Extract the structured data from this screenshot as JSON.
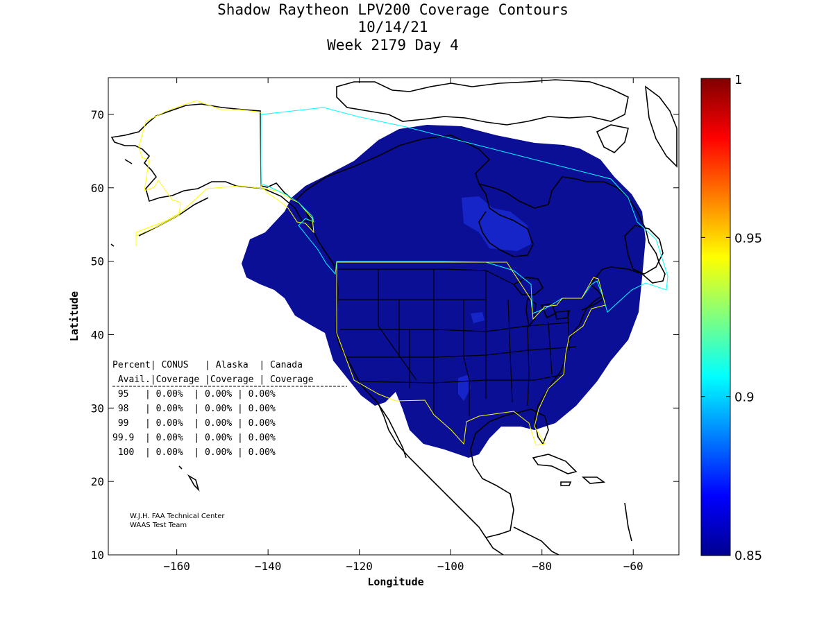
{
  "title": {
    "line1": "Shadow Raytheon LPV200 Coverage Contours",
    "line2": "10/14/21",
    "line3": "Week 2179 Day 4"
  },
  "axes": {
    "xlabel": "Longitude",
    "ylabel": "Latitude",
    "xlim": [
      -175,
      -50
    ],
    "ylim": [
      10,
      75
    ],
    "xticks": [
      -160,
      -140,
      -120,
      -100,
      -80,
      -60
    ],
    "yticks": [
      10,
      20,
      30,
      40,
      50,
      60,
      70
    ]
  },
  "colorbar": {
    "range": [
      0.85,
      1
    ],
    "ticks": [
      "0.85",
      "0.9",
      "0.95",
      "1"
    ],
    "colormap": "jet",
    "fill_color": "#0a0f96"
  },
  "table": {
    "header1": "Percent| CONUS   | Alaska  | Canada",
    "header2": " Avail.|Coverage |Coverage | Coverage",
    "rows": [
      " 95   | 0.00%  | 0.00% | 0.00%",
      " 98   | 0.00%  | 0.00% | 0.00%",
      " 99   | 0.00%  | 0.00% | 0.00%",
      "99.9  | 0.00%  | 0.00% | 0.00%",
      " 100  | 0.00%  | 0.00% | 0.00%"
    ]
  },
  "credits": {
    "line1": "W.J.H. FAA Technical Center",
    "line2": "WAAS Test Team"
  },
  "colors": {
    "coverage": "#0a0f96",
    "coverage_patch": "#1525c8",
    "alaska_boundary": "#ffff00",
    "canada_boundary": "#00ffff",
    "conus_boundary": "#ffff00",
    "coastline": "#000000"
  }
}
